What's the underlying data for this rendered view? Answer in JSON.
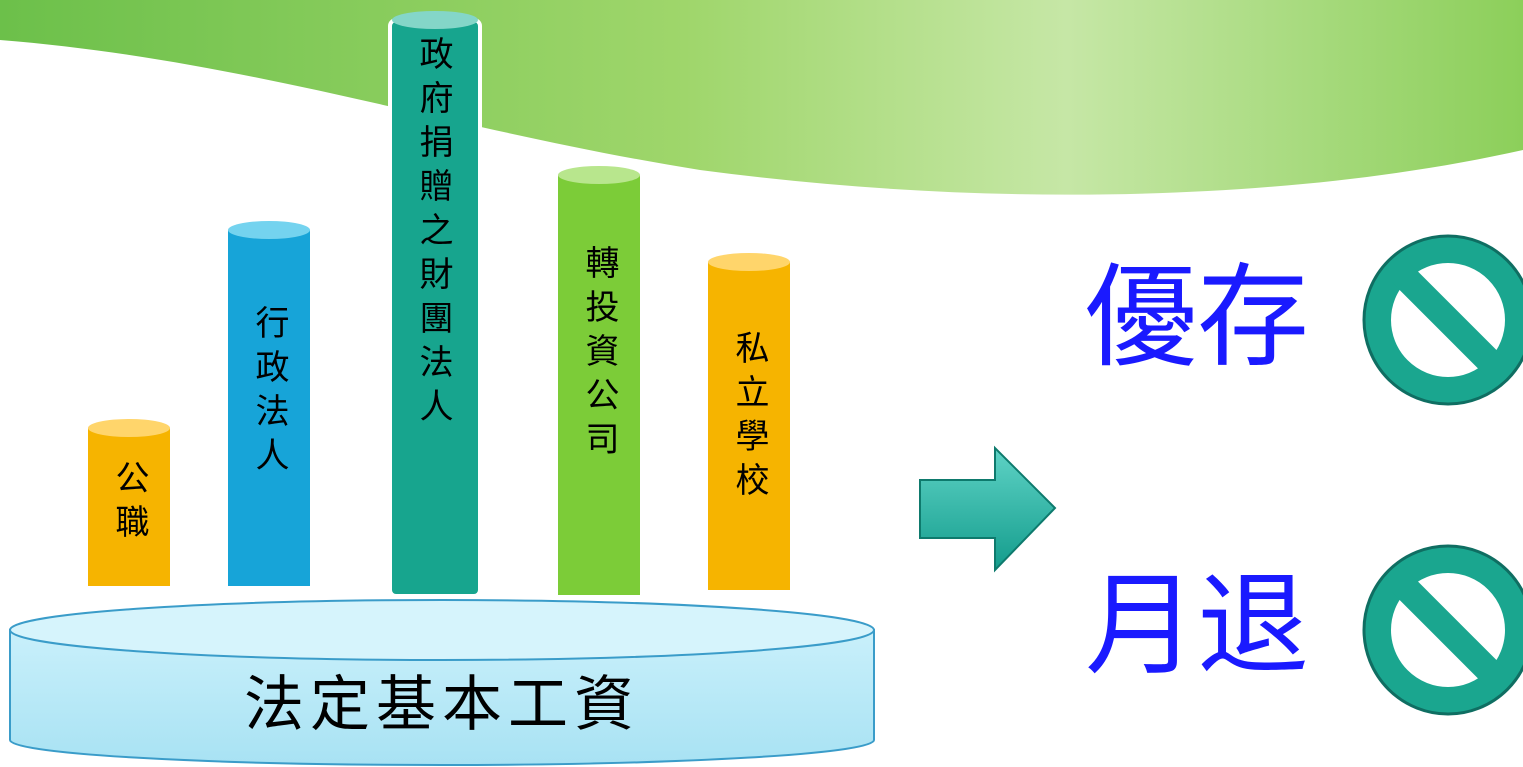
{
  "pillars": [
    {
      "label": "公職"
    },
    {
      "label": "行政法人"
    },
    {
      "label": "政府捐贈之財團法人"
    },
    {
      "label": "轉投資公司"
    },
    {
      "label": "私立學校"
    }
  ],
  "base": {
    "label": "法定基本工資"
  },
  "results": [
    {
      "label": "優存"
    },
    {
      "label": "月退"
    }
  ]
}
